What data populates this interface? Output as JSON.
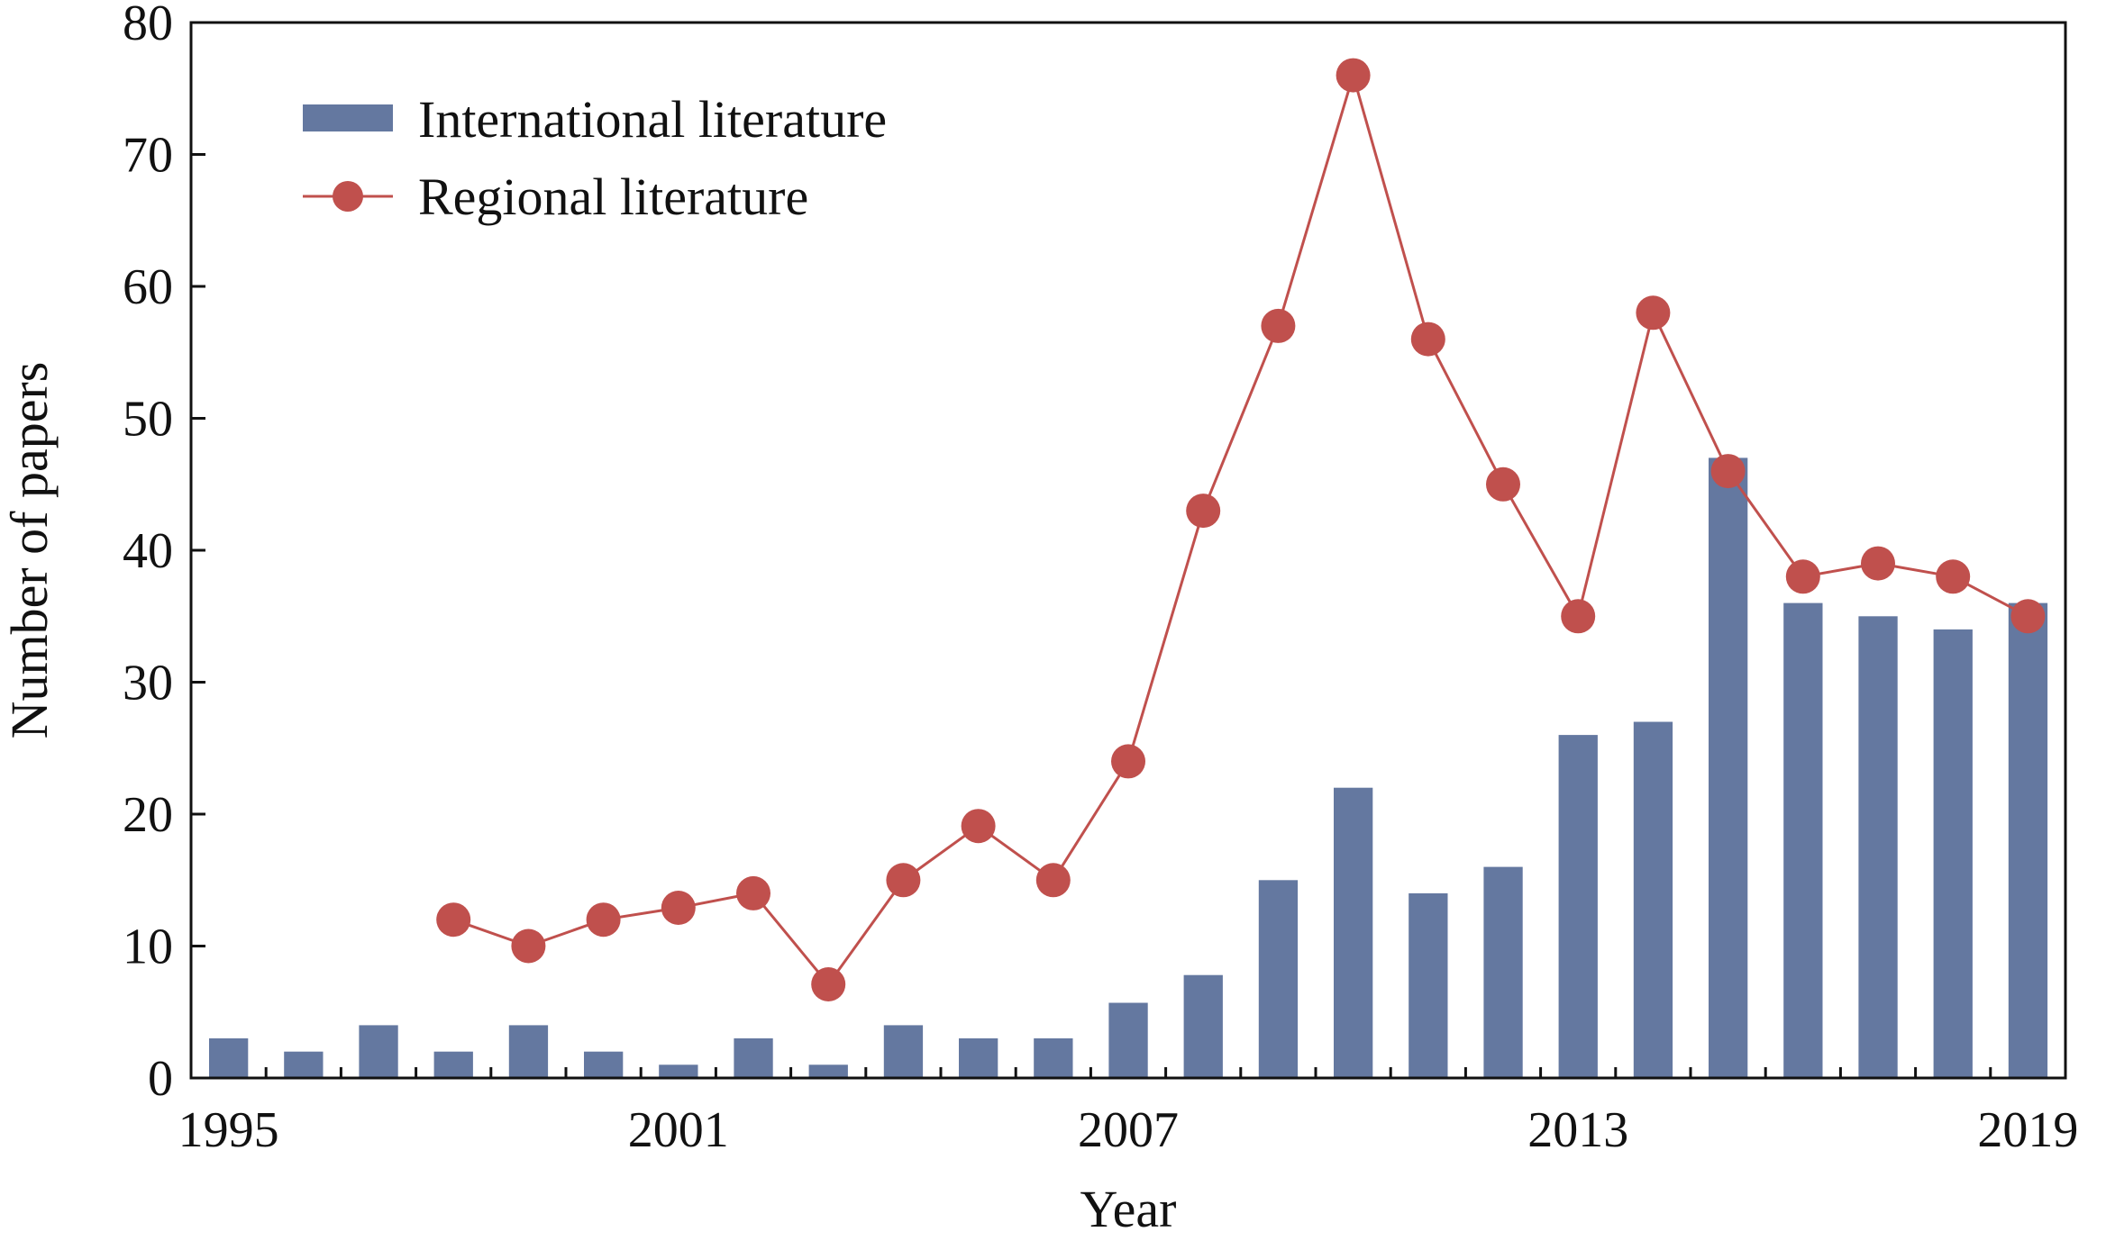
{
  "chart_data": {
    "type": "bar",
    "xlabel": "Year",
    "ylabel": "Number of papers",
    "ylim": [
      0,
      80
    ],
    "yticks": [
      0,
      10,
      20,
      30,
      40,
      50,
      60,
      70,
      80
    ],
    "xticks": [
      "1995",
      "2001",
      "2007",
      "2013",
      "2019"
    ],
    "grid": false,
    "legend_position": "top-left",
    "categories": [
      "1995",
      "1996",
      "1997",
      "1998",
      "1999",
      "2000",
      "2001",
      "2002",
      "2003",
      "2004",
      "2005",
      "2006",
      "2007",
      "2008",
      "2009",
      "2010",
      "2011",
      "2012",
      "2013",
      "2014",
      "2015",
      "2016",
      "2017",
      "2018",
      "2019"
    ],
    "series": [
      {
        "name": "International literature",
        "kind": "bar",
        "color": "#6478a0",
        "values": [
          3,
          2,
          4,
          2,
          4,
          2,
          1,
          3,
          1,
          4,
          3,
          3,
          5.7,
          7.8,
          15,
          22,
          14,
          16,
          26,
          27,
          47,
          36,
          35,
          34,
          36
        ]
      },
      {
        "name": "Regional literature",
        "kind": "line",
        "marker": "circle",
        "color": "#c0504d",
        "values": [
          null,
          null,
          null,
          12,
          10,
          12,
          12.9,
          14,
          7.1,
          15,
          19.1,
          15,
          24,
          43,
          57,
          76,
          56,
          45,
          35,
          58,
          46,
          38,
          39,
          38,
          35
        ]
      }
    ]
  }
}
